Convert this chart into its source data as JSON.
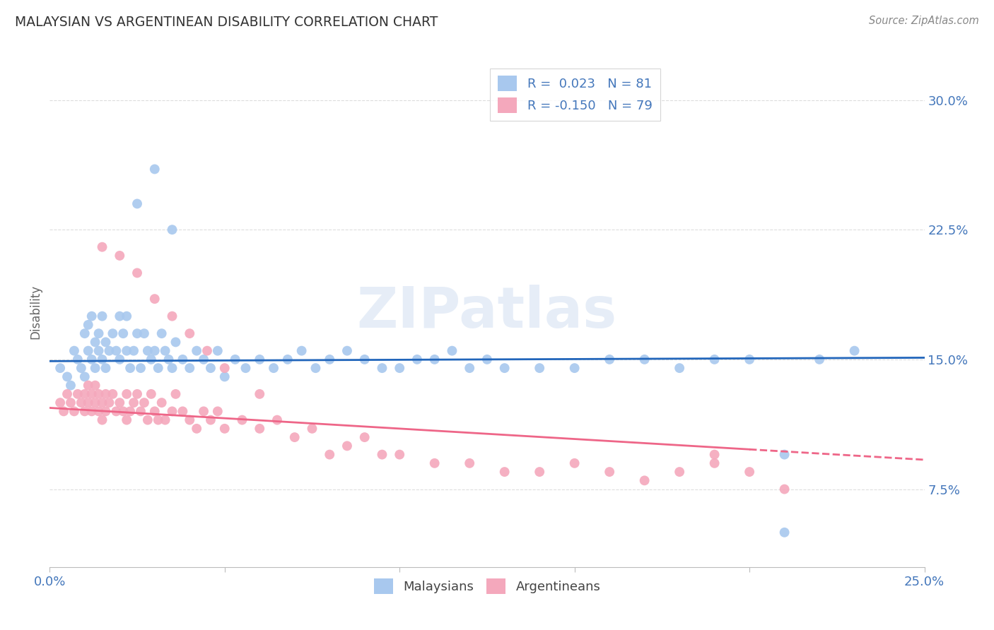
{
  "title": "MALAYSIAN VS ARGENTINEAN DISABILITY CORRELATION CHART",
  "source": "Source: ZipAtlas.com",
  "ylabel": "Disability",
  "xlim": [
    0.0,
    0.25
  ],
  "ylim": [
    0.03,
    0.325
  ],
  "xticks": [
    0.0,
    0.05,
    0.1,
    0.15,
    0.2,
    0.25
  ],
  "xticklabels": [
    "0.0%",
    "",
    "",
    "",
    "",
    "25.0%"
  ],
  "yticks": [
    0.075,
    0.15,
    0.225,
    0.3
  ],
  "yticklabels": [
    "7.5%",
    "15.0%",
    "22.5%",
    "30.0%"
  ],
  "legend_r_blue": "0.023",
  "legend_n_blue": "81",
  "legend_r_pink": "-0.150",
  "legend_n_pink": "79",
  "blue_color": "#A8C8EE",
  "pink_color": "#F4A8BC",
  "line_blue": "#2266BB",
  "line_pink": "#EE6688",
  "watermark": "ZIPatlas",
  "blue_line_y0": 0.149,
  "blue_line_y1": 0.151,
  "pink_line_y0": 0.122,
  "pink_line_y1": 0.092,
  "blue_scatter_x": [
    0.003,
    0.005,
    0.006,
    0.007,
    0.008,
    0.009,
    0.01,
    0.01,
    0.011,
    0.011,
    0.012,
    0.012,
    0.013,
    0.013,
    0.014,
    0.014,
    0.015,
    0.015,
    0.016,
    0.016,
    0.017,
    0.018,
    0.019,
    0.02,
    0.02,
    0.021,
    0.022,
    0.022,
    0.023,
    0.024,
    0.025,
    0.026,
    0.027,
    0.028,
    0.029,
    0.03,
    0.031,
    0.032,
    0.033,
    0.034,
    0.035,
    0.036,
    0.038,
    0.04,
    0.042,
    0.044,
    0.046,
    0.048,
    0.05,
    0.053,
    0.056,
    0.06,
    0.064,
    0.068,
    0.072,
    0.076,
    0.08,
    0.085,
    0.09,
    0.095,
    0.1,
    0.105,
    0.11,
    0.115,
    0.12,
    0.125,
    0.13,
    0.14,
    0.15,
    0.16,
    0.17,
    0.18,
    0.19,
    0.2,
    0.21,
    0.22,
    0.23,
    0.025,
    0.03,
    0.035,
    0.21
  ],
  "blue_scatter_y": [
    0.145,
    0.14,
    0.135,
    0.155,
    0.15,
    0.145,
    0.14,
    0.165,
    0.155,
    0.17,
    0.15,
    0.175,
    0.16,
    0.145,
    0.155,
    0.165,
    0.15,
    0.175,
    0.16,
    0.145,
    0.155,
    0.165,
    0.155,
    0.15,
    0.175,
    0.165,
    0.155,
    0.175,
    0.145,
    0.155,
    0.165,
    0.145,
    0.165,
    0.155,
    0.15,
    0.155,
    0.145,
    0.165,
    0.155,
    0.15,
    0.145,
    0.16,
    0.15,
    0.145,
    0.155,
    0.15,
    0.145,
    0.155,
    0.14,
    0.15,
    0.145,
    0.15,
    0.145,
    0.15,
    0.155,
    0.145,
    0.15,
    0.155,
    0.15,
    0.145,
    0.145,
    0.15,
    0.15,
    0.155,
    0.145,
    0.15,
    0.145,
    0.145,
    0.145,
    0.15,
    0.15,
    0.145,
    0.15,
    0.15,
    0.095,
    0.15,
    0.155,
    0.24,
    0.26,
    0.225,
    0.05
  ],
  "pink_scatter_x": [
    0.003,
    0.004,
    0.005,
    0.006,
    0.007,
    0.008,
    0.009,
    0.01,
    0.01,
    0.011,
    0.011,
    0.012,
    0.012,
    0.013,
    0.013,
    0.014,
    0.014,
    0.015,
    0.015,
    0.016,
    0.016,
    0.017,
    0.018,
    0.019,
    0.02,
    0.021,
    0.022,
    0.022,
    0.023,
    0.024,
    0.025,
    0.026,
    0.027,
    0.028,
    0.029,
    0.03,
    0.031,
    0.032,
    0.033,
    0.035,
    0.036,
    0.038,
    0.04,
    0.042,
    0.044,
    0.046,
    0.048,
    0.05,
    0.055,
    0.06,
    0.065,
    0.07,
    0.075,
    0.08,
    0.085,
    0.09,
    0.095,
    0.1,
    0.11,
    0.12,
    0.13,
    0.14,
    0.15,
    0.16,
    0.17,
    0.18,
    0.19,
    0.2,
    0.21,
    0.015,
    0.02,
    0.025,
    0.03,
    0.035,
    0.04,
    0.045,
    0.05,
    0.06,
    0.19
  ],
  "pink_scatter_y": [
    0.125,
    0.12,
    0.13,
    0.125,
    0.12,
    0.13,
    0.125,
    0.13,
    0.12,
    0.135,
    0.125,
    0.13,
    0.12,
    0.125,
    0.135,
    0.12,
    0.13,
    0.125,
    0.115,
    0.13,
    0.12,
    0.125,
    0.13,
    0.12,
    0.125,
    0.12,
    0.115,
    0.13,
    0.12,
    0.125,
    0.13,
    0.12,
    0.125,
    0.115,
    0.13,
    0.12,
    0.115,
    0.125,
    0.115,
    0.12,
    0.13,
    0.12,
    0.115,
    0.11,
    0.12,
    0.115,
    0.12,
    0.11,
    0.115,
    0.11,
    0.115,
    0.105,
    0.11,
    0.095,
    0.1,
    0.105,
    0.095,
    0.095,
    0.09,
    0.09,
    0.085,
    0.085,
    0.09,
    0.085,
    0.08,
    0.085,
    0.09,
    0.085,
    0.075,
    0.215,
    0.21,
    0.2,
    0.185,
    0.175,
    0.165,
    0.155,
    0.145,
    0.13,
    0.095
  ],
  "bg_color": "#FFFFFF",
  "grid_color": "#DDDDDD",
  "title_color": "#333333",
  "axis_color": "#4477BB",
  "tick_color": "#4477BB"
}
